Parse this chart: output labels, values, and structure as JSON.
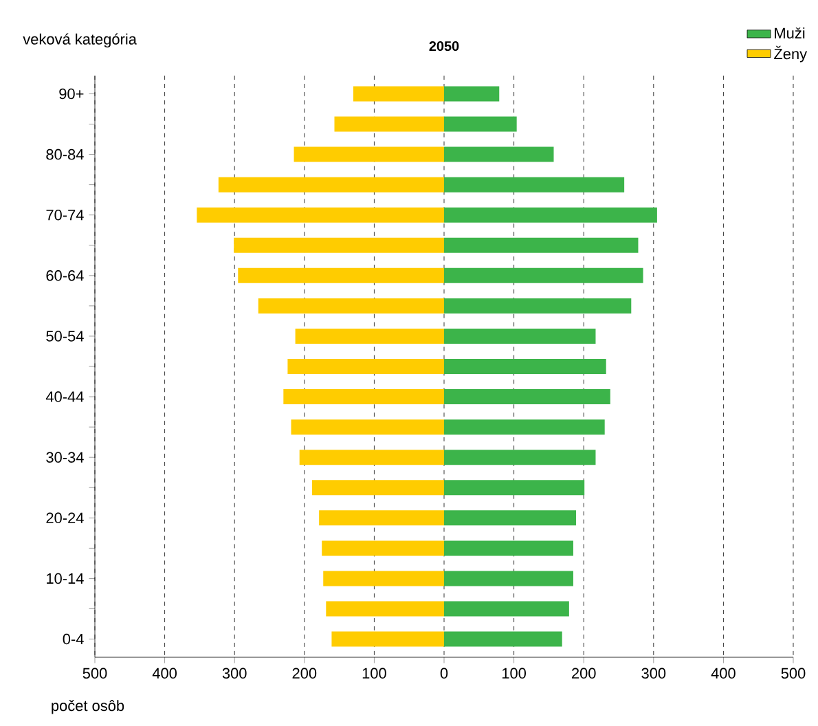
{
  "chart_data": {
    "type": "bar",
    "orientation": "horizontal",
    "title": "2050",
    "ylabel": "veková kategória",
    "xlabel": "počet osôb",
    "categories": [
      "90+",
      null,
      "80-84",
      null,
      "70-74",
      null,
      "60-64",
      null,
      "50-54",
      null,
      "40-44",
      null,
      "30-34",
      null,
      "20-24",
      null,
      "10-14",
      null,
      "0-4"
    ],
    "series": [
      {
        "name": "Muži",
        "color": "#3cb44a",
        "values": [
          79,
          104,
          157,
          258,
          305,
          278,
          285,
          268,
          217,
          232,
          238,
          230,
          217,
          201,
          189,
          185,
          185,
          179,
          169
        ]
      },
      {
        "name": "Ženy",
        "color": "#ffcc00",
        "values": [
          -130,
          -157,
          -215,
          -323,
          -354,
          -301,
          -295,
          -266,
          -213,
          -224,
          -230,
          -219,
          -207,
          -189,
          -179,
          -175,
          -173,
          -169,
          -161
        ]
      }
    ],
    "xlim": [
      -500,
      500
    ],
    "xticks": [
      {
        "value": -500,
        "label": "500"
      },
      {
        "value": -400,
        "label": "400"
      },
      {
        "value": -300,
        "label": "300"
      },
      {
        "value": -200,
        "label": "200"
      },
      {
        "value": -100,
        "label": "100"
      },
      0,
      100,
      200,
      300,
      400,
      500
    ],
    "grid": "x",
    "legend": "top right",
    "stacked": true
  }
}
